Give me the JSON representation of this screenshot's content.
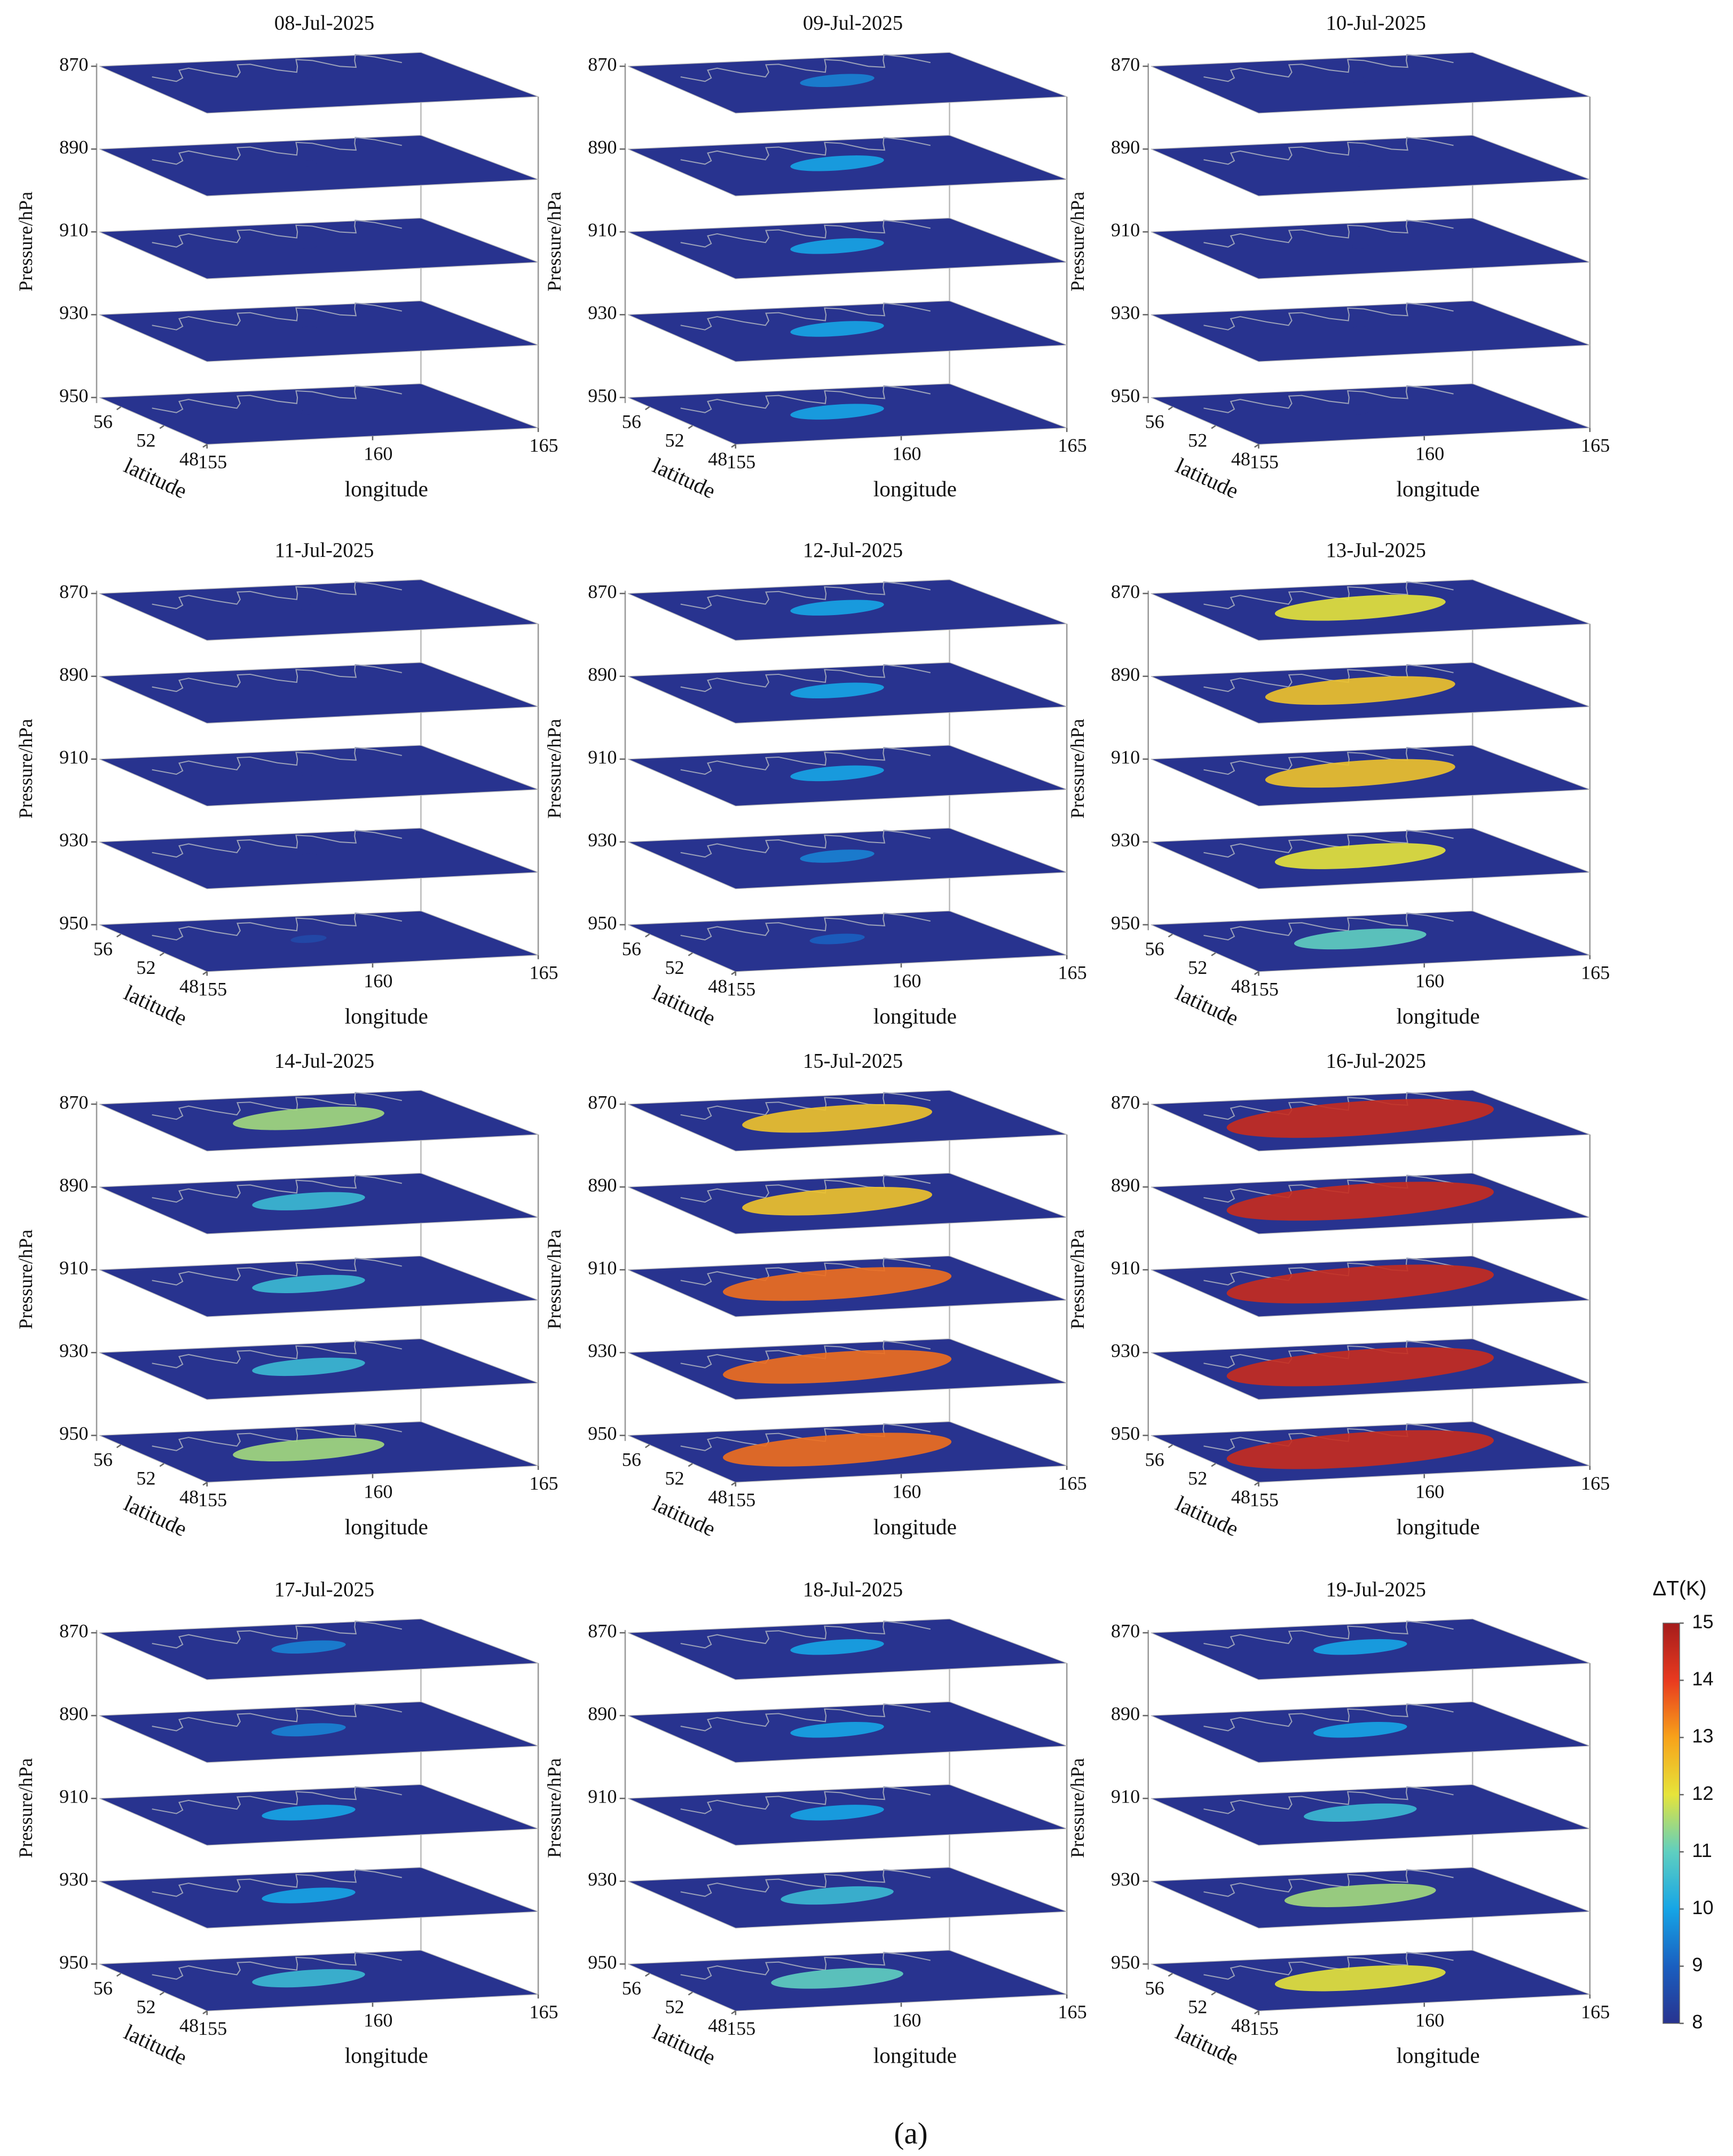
{
  "chart_data": [
    {
      "type": "heatmap3d",
      "title": "08-Jul-2025",
      "values": [
        8,
        8,
        8,
        8,
        8
      ]
    },
    {
      "type": "heatmap3d",
      "title": "09-Jul-2025",
      "values": [
        9.5,
        10,
        10,
        10,
        10
      ]
    },
    {
      "type": "heatmap3d",
      "title": "10-Jul-2025",
      "values": [
        8,
        8,
        8,
        8,
        8
      ]
    },
    {
      "type": "heatmap3d",
      "title": "11-Jul-2025",
      "values": [
        8,
        8,
        8,
        8,
        8.5
      ]
    },
    {
      "type": "heatmap3d",
      "title": "12-Jul-2025",
      "values": [
        10,
        10,
        10,
        9.5,
        9
      ]
    },
    {
      "type": "heatmap3d",
      "title": "13-Jul-2025",
      "values": [
        12,
        12.5,
        12.5,
        12,
        11
      ]
    },
    {
      "type": "heatmap3d",
      "title": "14-Jul-2025",
      "values": [
        11.5,
        10.5,
        10.5,
        10.5,
        11.5
      ]
    },
    {
      "type": "heatmap3d",
      "title": "15-Jul-2025",
      "values": [
        12.5,
        12.5,
        13.5,
        13.5,
        13.5
      ]
    },
    {
      "type": "heatmap3d",
      "title": "16-Jul-2025",
      "values": [
        14.5,
        14.5,
        14.5,
        14.5,
        14.5
      ]
    },
    {
      "type": "heatmap3d",
      "title": "17-Jul-2025",
      "values": [
        9.5,
        9.5,
        10,
        10,
        10.5
      ]
    },
    {
      "type": "heatmap3d",
      "title": "18-Jul-2025",
      "values": [
        10,
        10,
        10,
        10.5,
        11
      ]
    },
    {
      "type": "heatmap3d",
      "title": "19-Jul-2025",
      "values": [
        10,
        10,
        10.5,
        11.5,
        12
      ]
    }
  ],
  "axes": {
    "ylabel": "Pressure/hPa",
    "ylim": [
      870,
      950
    ],
    "yticks": [
      870,
      890,
      910,
      930,
      950
    ],
    "xlabel": "longitude",
    "xlim": [
      155,
      165
    ],
    "xticks": [
      155,
      160,
      165
    ],
    "zlabel": "latitude",
    "zlim": [
      48,
      58
    ],
    "zticks": [
      56,
      52,
      48
    ]
  },
  "colorbar": {
    "label": "ΔT(K)",
    "lim": [
      8,
      15
    ],
    "ticks": [
      8,
      9,
      10,
      11,
      12,
      13,
      14,
      15
    ],
    "colors": [
      "#28338f",
      "#1a5fc0",
      "#16a5e6",
      "#5fcfc0",
      "#e6e43a",
      "#f7a21a",
      "#e83a1f",
      "#a51c1c"
    ]
  },
  "caption": "(a)"
}
